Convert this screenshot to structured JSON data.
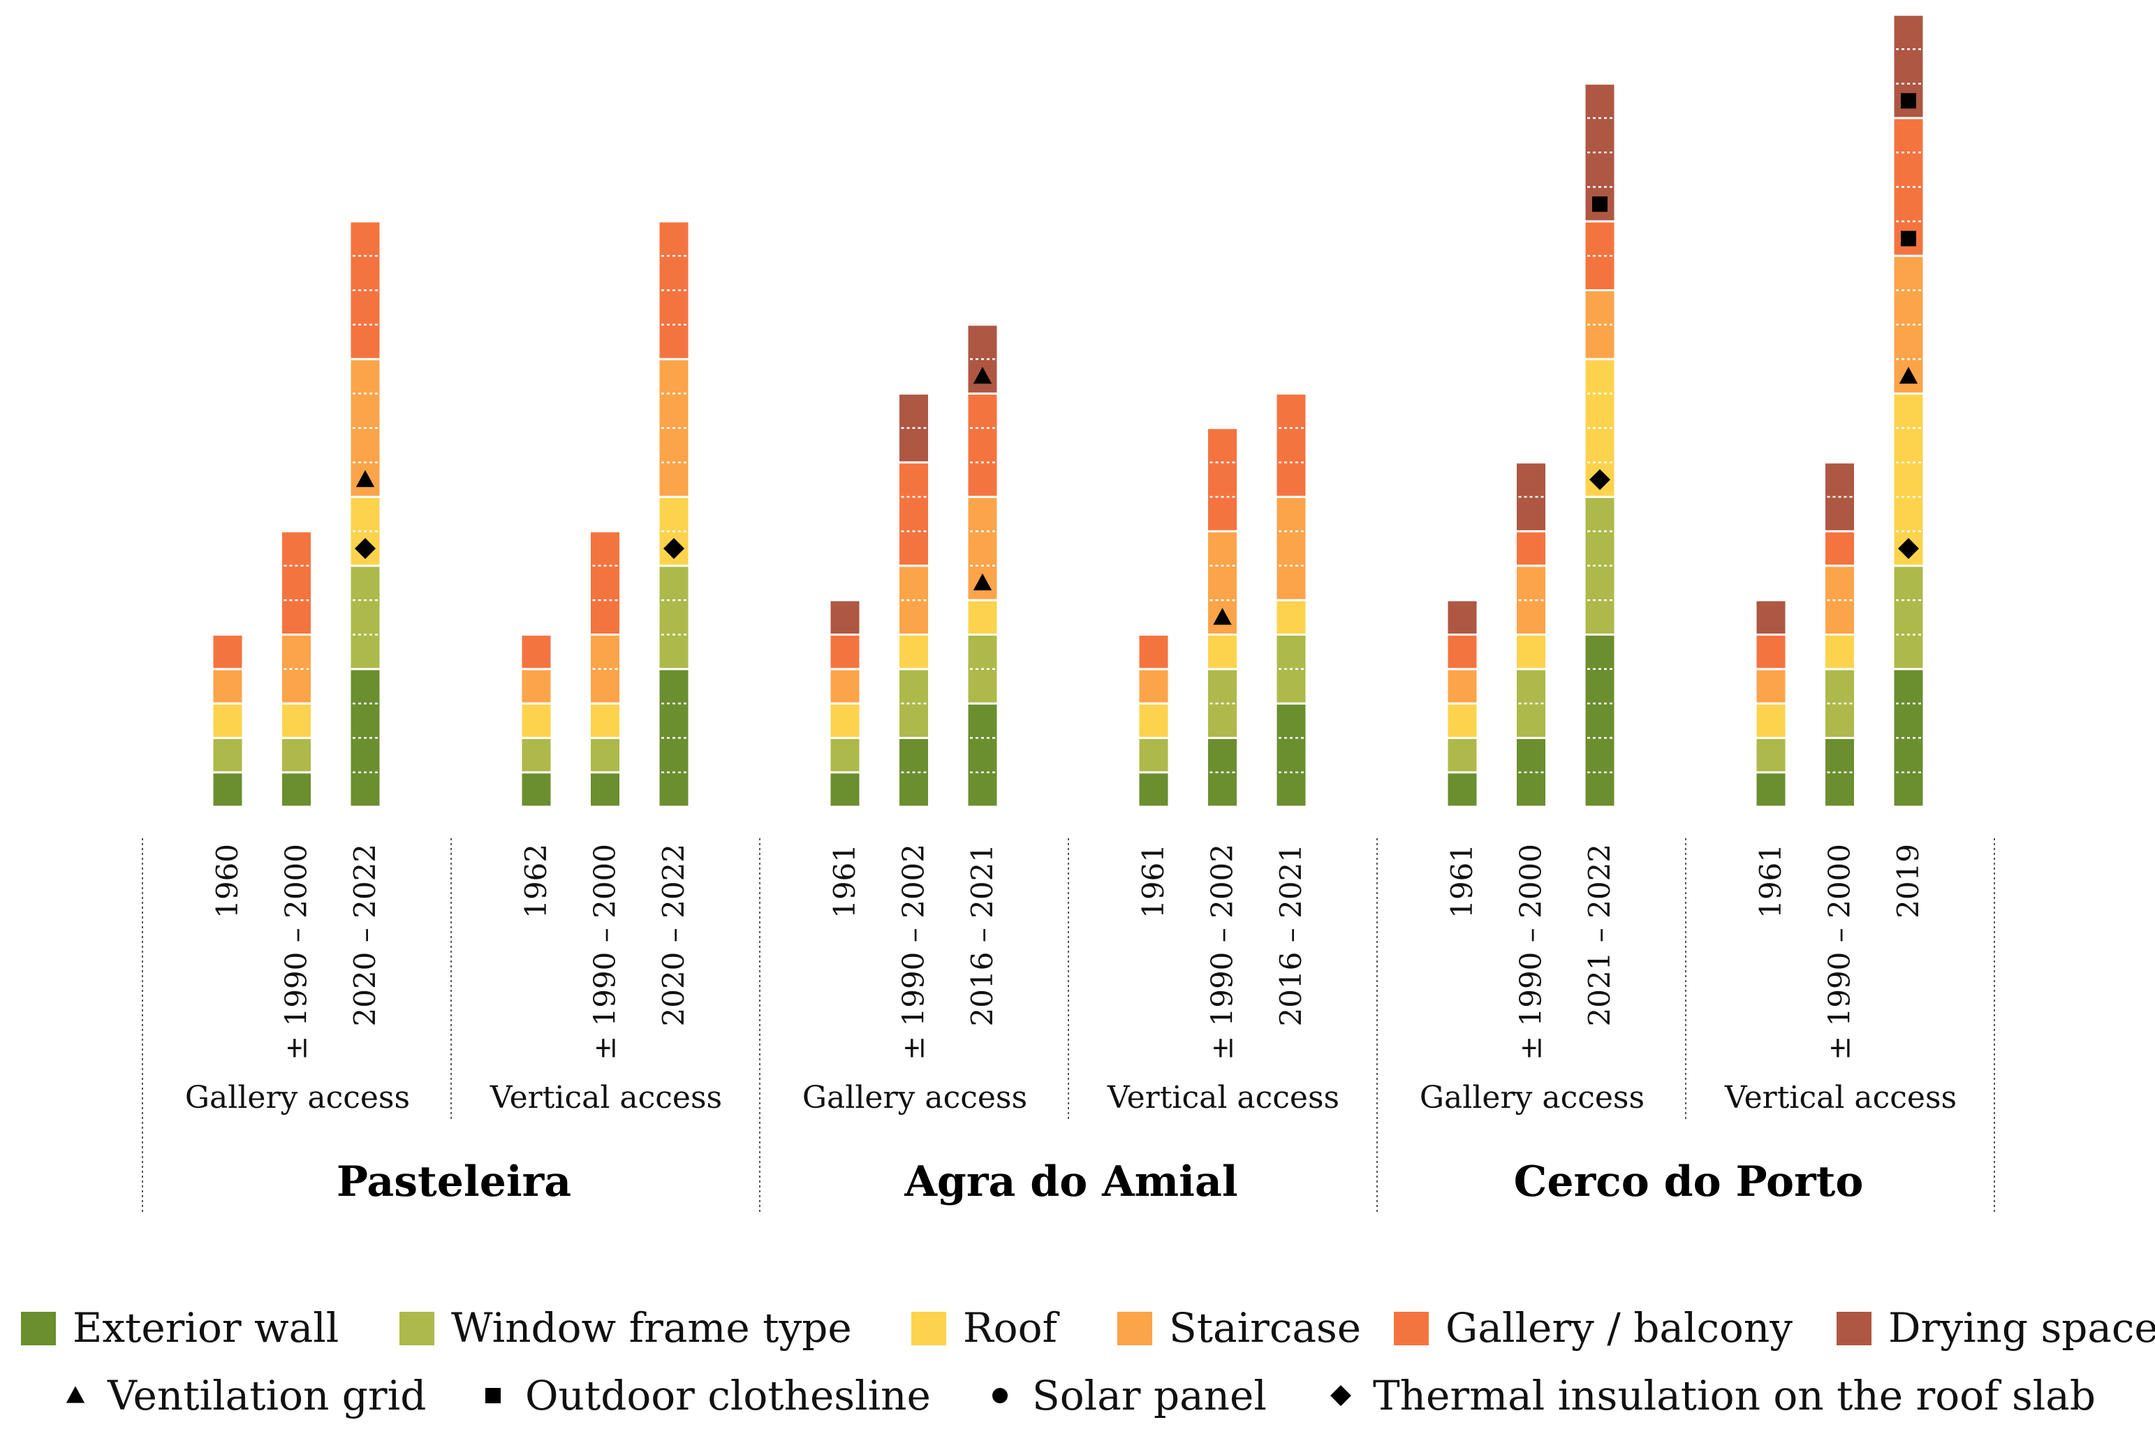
{
  "chart_data": {
    "type": "bar",
    "stacked": true,
    "title": "",
    "xlabel": "",
    "ylabel": "",
    "ylim": [
      0,
      23
    ],
    "sites": [
      "Pasteleira",
      "Agra do Amial",
      "Cerco do Porto"
    ],
    "groups": [
      "Gallery access",
      "Vertical access",
      "Gallery access",
      "Vertical access",
      "Gallery access",
      "Vertical access"
    ],
    "components": [
      {
        "name": "Exterior wall",
        "color": "#6b8e2f"
      },
      {
        "name": "Window frame type",
        "color": "#adb94a"
      },
      {
        "name": "Roof",
        "color": "#fdd34d"
      },
      {
        "name": "Staircase",
        "color": "#fca44a"
      },
      {
        "name": "Gallery / balcony",
        "color": "#f47440"
      },
      {
        "name": "Drying space",
        "color": "#ae5743"
      }
    ],
    "markers": [
      {
        "name": "Ventilation grid",
        "shape": "triangle"
      },
      {
        "name": "Outdoor clothesline",
        "shape": "square"
      },
      {
        "name": "Solar panel",
        "shape": "circle"
      },
      {
        "name": "Thermal insulation on the roof slab",
        "shape": "diamond"
      }
    ],
    "bars": [
      {
        "label": "1960",
        "group": 0,
        "values": [
          1,
          1,
          1,
          1,
          1,
          0
        ],
        "markers": []
      },
      {
        "label": "± 1990 – 2000",
        "group": 0,
        "values": [
          1,
          1,
          1,
          2,
          3,
          0
        ],
        "markers": []
      },
      {
        "label": "2020 – 2022",
        "group": 0,
        "values": [
          4,
          3,
          2,
          4,
          4,
          0
        ],
        "markers": [
          {
            "shape": "diamond",
            "y": 7.5
          },
          {
            "shape": "triangle",
            "y": 9.5
          }
        ]
      },
      {
        "label": "1962",
        "group": 1,
        "values": [
          1,
          1,
          1,
          1,
          1,
          0
        ],
        "markers": []
      },
      {
        "label": "± 1990 – 2000",
        "group": 1,
        "values": [
          1,
          1,
          1,
          2,
          3,
          0
        ],
        "markers": []
      },
      {
        "label": "2020 – 2022",
        "group": 1,
        "values": [
          4,
          3,
          2,
          4,
          4,
          0
        ],
        "markers": [
          {
            "shape": "diamond",
            "y": 7.5
          }
        ]
      },
      {
        "label": "1961",
        "group": 2,
        "values": [
          1,
          1,
          1,
          1,
          1,
          1
        ],
        "markers": []
      },
      {
        "label": "± 1990 – 2002",
        "group": 2,
        "values": [
          2,
          2,
          1,
          2,
          3,
          2
        ],
        "markers": []
      },
      {
        "label": "2016 – 2021",
        "group": 2,
        "values": [
          3,
          2,
          1,
          3,
          3,
          2
        ],
        "markers": [
          {
            "shape": "triangle",
            "y": 6.5
          },
          {
            "shape": "triangle",
            "y": 12.5
          }
        ]
      },
      {
        "label": "1961",
        "group": 3,
        "values": [
          1,
          1,
          1,
          1,
          1,
          0
        ],
        "markers": []
      },
      {
        "label": "± 1990 – 2002",
        "group": 3,
        "values": [
          2,
          2,
          1,
          3,
          3,
          0
        ],
        "markers": [
          {
            "shape": "triangle",
            "y": 5.5
          }
        ]
      },
      {
        "label": "2016 – 2021",
        "group": 3,
        "values": [
          3,
          2,
          1,
          3,
          3,
          0
        ],
        "markers": []
      },
      {
        "label": "1961",
        "group": 4,
        "values": [
          1,
          1,
          1,
          1,
          1,
          1
        ],
        "markers": []
      },
      {
        "label": "± 1990 – 2000",
        "group": 4,
        "values": [
          2,
          2,
          1,
          2,
          1,
          2
        ],
        "markers": []
      },
      {
        "label": "2021 – 2022",
        "group": 4,
        "values": [
          5,
          4,
          4,
          2,
          2,
          4
        ],
        "markers": [
          {
            "shape": "diamond",
            "y": 9.5
          },
          {
            "shape": "square",
            "y": 17.5
          }
        ]
      },
      {
        "label": "1961",
        "group": 5,
        "values": [
          1,
          1,
          1,
          1,
          1,
          1
        ],
        "markers": []
      },
      {
        "label": "± 1990 – 2000",
        "group": 5,
        "values": [
          2,
          2,
          1,
          2,
          1,
          2
        ],
        "markers": []
      },
      {
        "label": "2019",
        "group": 5,
        "values": [
          4,
          3,
          5,
          4,
          4,
          3
        ],
        "markers": [
          {
            "shape": "diamond",
            "y": 7.5
          },
          {
            "shape": "triangle",
            "y": 12.5
          },
          {
            "shape": "square",
            "y": 16.5
          },
          {
            "shape": "square",
            "y": 20.5
          }
        ]
      }
    ]
  }
}
